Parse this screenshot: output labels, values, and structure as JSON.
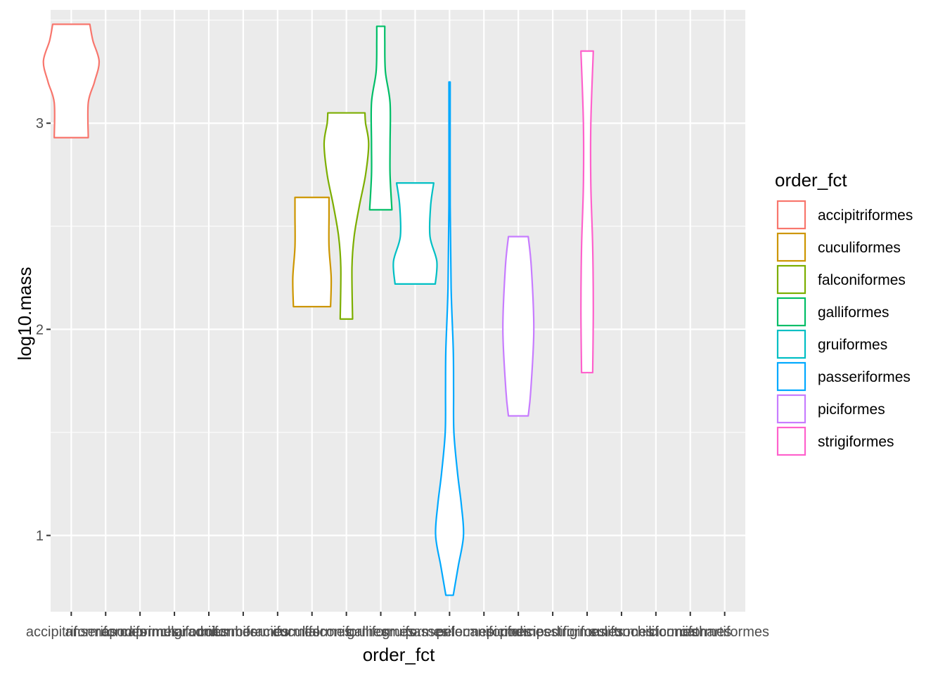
{
  "chart_data": {
    "type": "violin",
    "xlabel": "order_fct",
    "ylabel": "log10.mass",
    "ylim": [
      0.63,
      3.55
    ],
    "y_ticks": [
      1,
      2,
      3
    ],
    "grid": true,
    "legend_title": "order_fct",
    "legend_position": "right",
    "categories": [
      "accipitriformes",
      "anseriformes",
      "apodiformes",
      "caprimulgiformes",
      "charadriiformes",
      "columbiformes",
      "coraciiformes",
      "cuculiformes",
      "falconiformes",
      "galliformes",
      "gruiformes",
      "passeriformes",
      "pelecaniformes",
      "piciformes",
      "podicipediformes",
      "strigiformes",
      "suliformes",
      "trochiliformes",
      "ciconiiformes",
      "cathartiformes"
    ],
    "series": [
      {
        "name": "accipitriformes",
        "category_index": 0,
        "color": "#F8766D",
        "ymin": 2.93,
        "ymax": 3.48,
        "profile": [
          [
            2.93,
            0.55
          ],
          [
            3.1,
            0.55
          ],
          [
            3.2,
            0.75
          ],
          [
            3.3,
            0.9
          ],
          [
            3.4,
            0.7
          ],
          [
            3.48,
            0.6
          ]
        ]
      },
      {
        "name": "cuculiformes",
        "category_index": 7,
        "color": "#CD9600",
        "ymin": 2.11,
        "ymax": 2.64,
        "profile": [
          [
            2.11,
            0.6
          ],
          [
            2.25,
            0.62
          ],
          [
            2.4,
            0.55
          ],
          [
            2.55,
            0.55
          ],
          [
            2.64,
            0.55
          ]
        ]
      },
      {
        "name": "falconiformes",
        "category_index": 8,
        "color": "#7CAE00",
        "ymin": 2.05,
        "ymax": 3.05,
        "profile": [
          [
            2.05,
            0.2
          ],
          [
            2.3,
            0.18
          ],
          [
            2.45,
            0.25
          ],
          [
            2.6,
            0.42
          ],
          [
            2.75,
            0.62
          ],
          [
            2.9,
            0.72
          ],
          [
            3.0,
            0.62
          ],
          [
            3.05,
            0.6
          ]
        ]
      },
      {
        "name": "galliformes",
        "category_index": 9,
        "color": "#00BE67",
        "ymin": 2.58,
        "ymax": 3.47,
        "profile": [
          [
            2.58,
            0.36
          ],
          [
            2.75,
            0.3
          ],
          [
            2.9,
            0.3
          ],
          [
            3.1,
            0.3
          ],
          [
            3.25,
            0.15
          ],
          [
            3.4,
            0.13
          ],
          [
            3.47,
            0.13
          ]
        ]
      },
      {
        "name": "gruiformes",
        "category_index": 10,
        "color": "#00BFC4",
        "ymin": 2.22,
        "ymax": 2.71,
        "profile": [
          [
            2.22,
            0.65
          ],
          [
            2.33,
            0.7
          ],
          [
            2.45,
            0.48
          ],
          [
            2.6,
            0.5
          ],
          [
            2.71,
            0.6
          ]
        ]
      },
      {
        "name": "passeriformes",
        "category_index": 11,
        "color": "#00A9FF",
        "ymin": 0.71,
        "ymax": 3.2,
        "profile": [
          [
            0.71,
            0.12
          ],
          [
            0.85,
            0.28
          ],
          [
            1.0,
            0.45
          ],
          [
            1.15,
            0.38
          ],
          [
            1.3,
            0.26
          ],
          [
            1.5,
            0.14
          ],
          [
            1.7,
            0.13
          ],
          [
            1.9,
            0.12
          ],
          [
            2.2,
            0.05
          ],
          [
            2.6,
            0.02
          ],
          [
            3.2,
            0.02
          ]
        ]
      },
      {
        "name": "piciformes",
        "category_index": 13,
        "color": "#C77CFF",
        "ymin": 1.58,
        "ymax": 2.45,
        "profile": [
          [
            1.58,
            0.32
          ],
          [
            1.7,
            0.4
          ],
          [
            2.0,
            0.5
          ],
          [
            2.3,
            0.42
          ],
          [
            2.45,
            0.32
          ]
        ]
      },
      {
        "name": "strigiformes",
        "category_index": 15,
        "color": "#FF61CC",
        "ymin": 1.79,
        "ymax": 3.35,
        "profile": [
          [
            1.79,
            0.18
          ],
          [
            2.1,
            0.2
          ],
          [
            2.4,
            0.18
          ],
          [
            2.7,
            0.12
          ],
          [
            3.0,
            0.12
          ],
          [
            3.35,
            0.2
          ]
        ]
      }
    ]
  }
}
